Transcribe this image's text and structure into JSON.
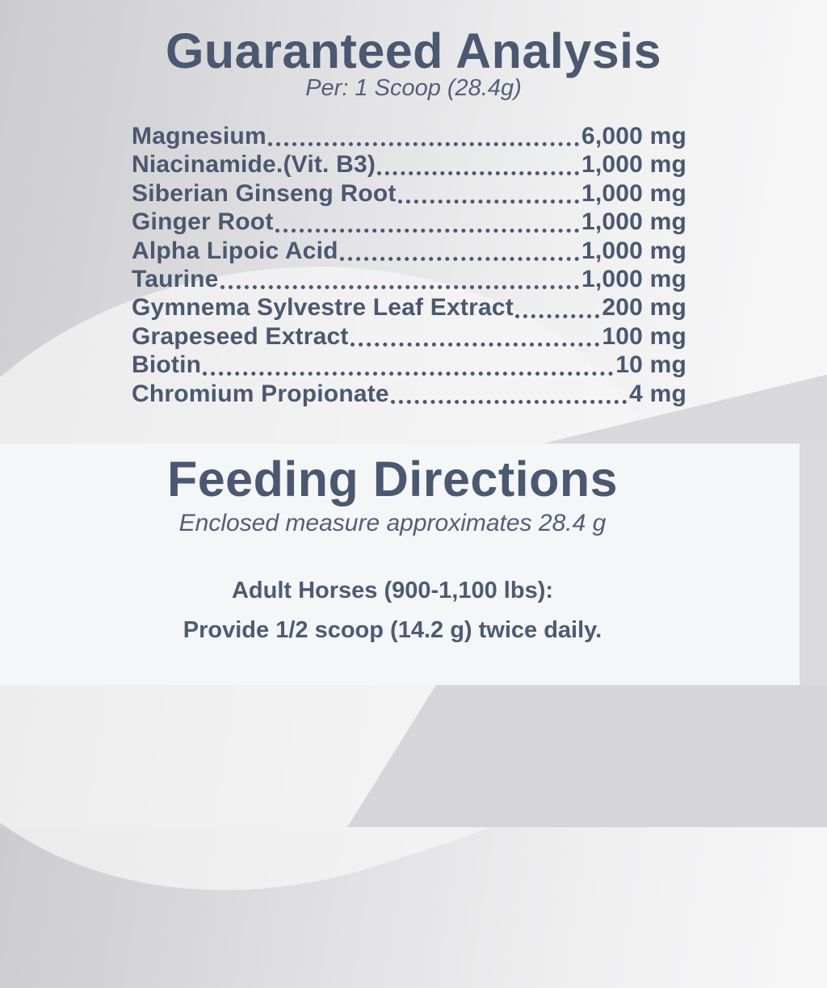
{
  "analysis": {
    "title": "Guaranteed Analysis",
    "serving": "Per: 1 Scoop (28.4g)",
    "rows": [
      {
        "name": "Magnesium",
        "amount": "6,000 mg"
      },
      {
        "name": "Niacinamide.(Vit. B3)",
        "amount": "1,000 mg"
      },
      {
        "name": "Siberian Ginseng Root",
        "amount": "1,000 mg"
      },
      {
        "name": "Ginger Root",
        "amount": "1,000 mg"
      },
      {
        "name": "Alpha Lipoic Acid",
        "amount": "1,000 mg"
      },
      {
        "name": "Taurine",
        "amount": "1,000 mg"
      },
      {
        "name": "Gymnema Sylvestre Leaf Extract",
        "amount": "200 mg"
      },
      {
        "name": "Grapeseed Extract",
        "amount": "100 mg"
      },
      {
        "name": "Biotin",
        "amount": "10 mg"
      },
      {
        "name": "Chromium Propionate",
        "amount": "4 mg"
      }
    ]
  },
  "feeding": {
    "title": "Feeding Directions",
    "subtitle": "Enclosed measure approximates 28.4 g",
    "line1": "Adult Horses (900-1,100 lbs):",
    "line2": "Provide 1/2 scoop (14.2 g) twice daily."
  },
  "colors": {
    "text_slate": "#4b5871",
    "panel_background": "#f5f6f8",
    "background_gray": "#d6d6d8"
  }
}
